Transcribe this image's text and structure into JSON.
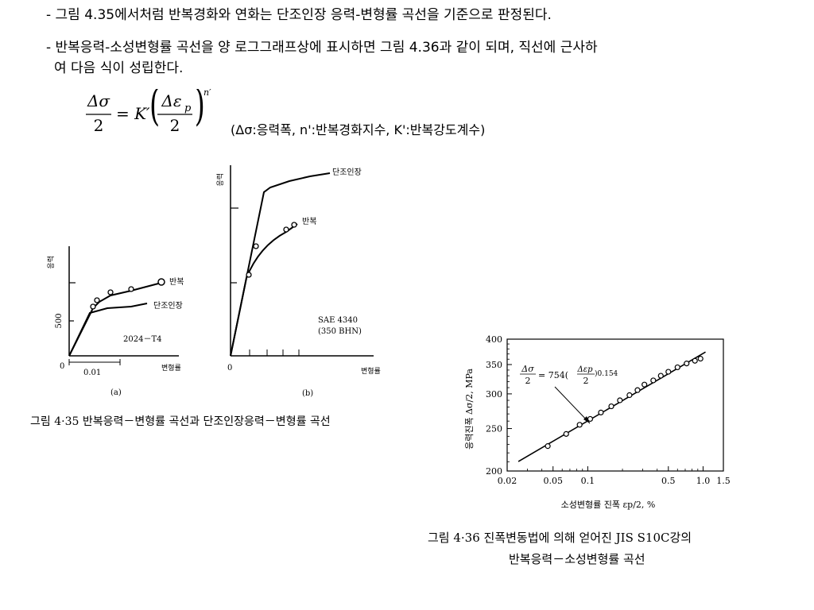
{
  "text": {
    "line1": "- 그림 4.35에서처럼 반복경화와 연화는 단조인장 응력-변형률 곡선을 기준으로 판정된다.",
    "line2": "- 반복응력-소성변형률 곡선을 양 로그그래프상에 표시하면 그림 4.36과 같이 되며, 직선에 근사하",
    "line3": "여 다음 식이 성립한다.",
    "formula_note": "(Δσ:응력폭, n':반복경화지수, K':반복강도계수)"
  },
  "formula": {
    "lhs_num": "Δσ",
    "lhs_den": "2",
    "equals": "= K′",
    "rhs_num": "Δε",
    "rhs_sub": "p",
    "rhs_den": "2",
    "exponent": "n′"
  },
  "fig435": {
    "caption": "그림 4·35   반복응력－변형률 곡선과 단조인장응력－변형률 곡선",
    "a": {
      "ylabel": "응력",
      "y500": "500",
      "zero": "0",
      "x001": "0.01",
      "xlabel": "변형률",
      "label_cyclic": "반복",
      "label_mono": "단조인장",
      "material": "2024－T4",
      "sub": "(a)"
    },
    "b": {
      "ylabel": "응력",
      "zero": "0",
      "xlabel": "변형률",
      "label_cyclic": "반복",
      "label_mono": "단조인장",
      "material1": "SAE 4340",
      "material2": "(350 BHN)",
      "sub": "(b)"
    }
  },
  "fig436": {
    "caption1": "그림 4·36   진폭변동법에 의해 얻어진 JIS S10C강의",
    "caption2": "반복응력－소성변형률 곡선",
    "ylabel": "응력진폭 Δσ/2, MPa",
    "xlabel": "소성변형률 진폭 εp/2, %",
    "eq_lhs_num": "Δσ",
    "eq_lhs_den": "2",
    "eq_mid": "= 754(",
    "eq_rhs_num": "Δεp",
    "eq_rhs_den": "2",
    "eq_exp": ")0.154",
    "yticks": [
      "200",
      "250",
      "300",
      "350",
      "400"
    ],
    "xticks": [
      "0.02",
      "0.05",
      "0.1",
      "0.5",
      "1.0",
      "1.5"
    ]
  },
  "chart_data": {
    "type": "scatter",
    "title": "",
    "xlabel": "소성변형률 진폭 εp/2, %",
    "ylabel": "응력진폭 Δσ/2, MPa",
    "xscale": "log",
    "yscale": "log",
    "xlim": [
      0.02,
      1.5
    ],
    "ylim": [
      200,
      400
    ],
    "series": [
      {
        "name": "",
        "x": [
          0.045,
          0.065,
          0.085,
          0.105,
          0.13,
          0.16,
          0.19,
          0.23,
          0.27,
          0.31,
          0.37,
          0.43,
          0.5,
          0.6,
          0.72,
          0.85,
          0.95
        ],
        "y": [
          228,
          243,
          255,
          263,
          272,
          281,
          290,
          298,
          306,
          315,
          322,
          330,
          337,
          345,
          352,
          357,
          361
        ]
      }
    ],
    "fit": {
      "K": 754,
      "n": 0.154
    }
  }
}
